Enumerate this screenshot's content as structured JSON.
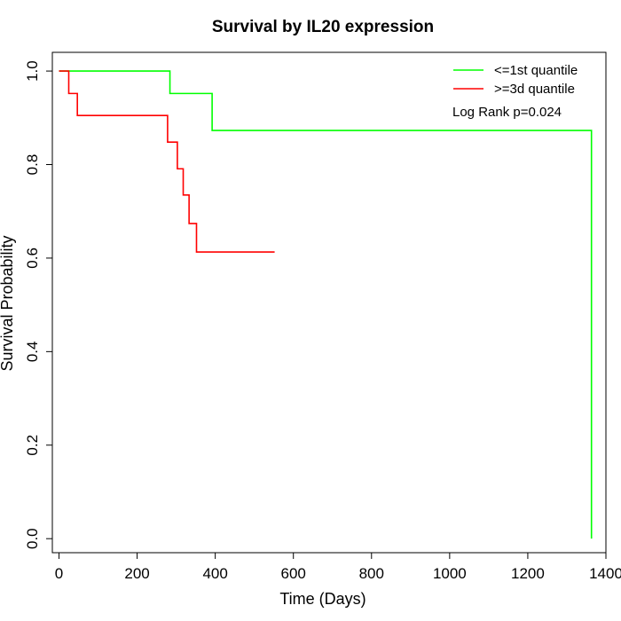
{
  "chart_data": {
    "type": "line",
    "title": "Survival by IL20 expression",
    "xlabel": "Time (Days)",
    "ylabel": "Survival Probability",
    "xlim": [
      -17,
      1400
    ],
    "ylim": [
      -0.03,
      1.04
    ],
    "xticks": [
      0,
      200,
      400,
      600,
      800,
      1000,
      1200,
      1400
    ],
    "xtick_labels": [
      "0",
      "200",
      "400",
      "600",
      "800",
      "1000",
      "1200",
      "1400"
    ],
    "yticks": [
      0.0,
      0.2,
      0.4,
      0.6,
      0.8,
      1.0
    ],
    "ytick_labels": [
      "0.0",
      "0.2",
      "0.4",
      "0.6",
      "0.8",
      "1.0"
    ],
    "grid": false,
    "legend_position": "top-right",
    "annotation": "Log Rank p=0.024",
    "series": [
      {
        "name": "<=1st quantile",
        "color": "#00ff00",
        "step": true,
        "x": [
          0,
          284,
          392,
          1363,
          1363
        ],
        "y": [
          1.0,
          0.952,
          0.873,
          0.873,
          0.0
        ]
      },
      {
        "name": ">=3d quantile",
        "color": "#ff0000",
        "step": true,
        "x": [
          0,
          25,
          47,
          278,
          303,
          318,
          333,
          352,
          552
        ],
        "y": [
          1.0,
          0.952,
          0.905,
          0.848,
          0.791,
          0.735,
          0.674,
          0.613,
          0.613
        ]
      }
    ]
  }
}
